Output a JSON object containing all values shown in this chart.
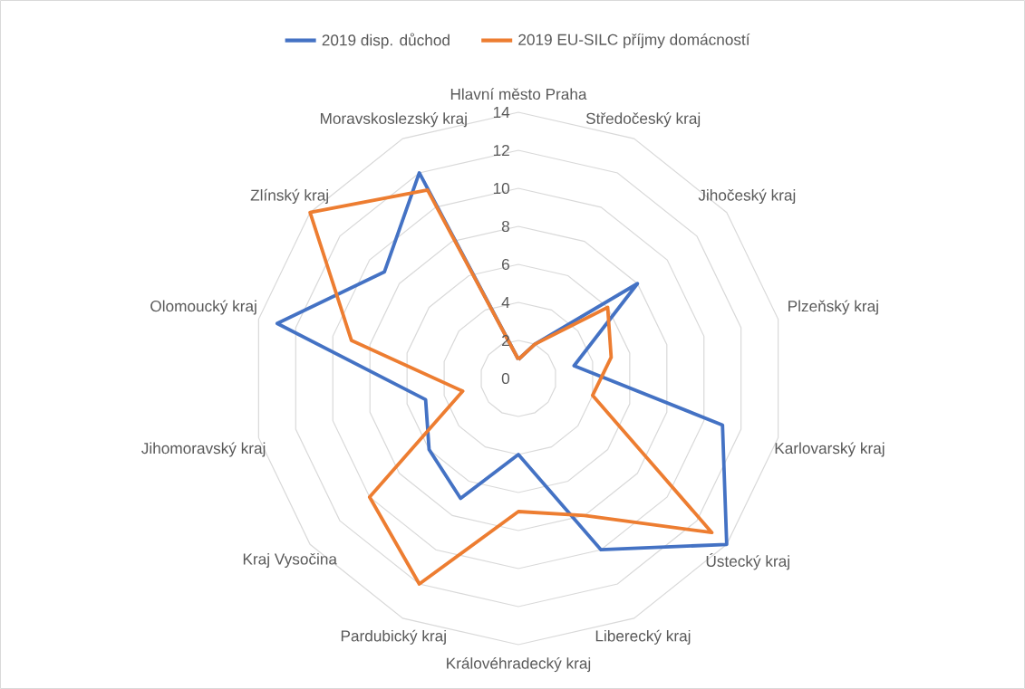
{
  "chart_data": {
    "type": "radar",
    "categories": [
      "Hlavní město Praha",
      "Středočeský kraj",
      "Jihočeský kraj",
      "Plzeňský kraj",
      "Karlovarský kraj",
      "Ústecký kraj",
      "Liberecký kraj",
      "Královéhradecký kraj",
      "Pardubický kraj",
      "Kraj Vysočina",
      "Jihomoravský kraj",
      "Olomoucký kraj",
      "Zlínský kraj",
      "Moravskoslezský kraj"
    ],
    "series": [
      {
        "name": "2019 disp. důchod",
        "color": "#4472c4",
        "values": [
          1,
          2,
          8,
          3,
          11,
          14,
          10,
          4,
          7,
          6,
          5,
          13,
          9,
          12
        ]
      },
      {
        "name": "2019 EU-SILC příjmy domácností",
        "color": "#ed7d31",
        "values": [
          1,
          2,
          6,
          5,
          4,
          13,
          8,
          7,
          12,
          10,
          3,
          9,
          14,
          11
        ]
      }
    ],
    "ylim": [
      0,
      14
    ],
    "yticks": [
      0,
      2,
      4,
      6,
      8,
      10,
      12,
      14
    ],
    "grid": true,
    "legend": "top"
  }
}
